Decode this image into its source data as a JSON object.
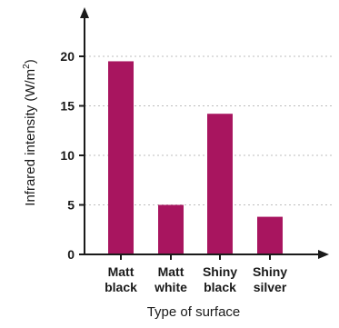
{
  "chart_data": {
    "type": "bar",
    "categories": [
      [
        "Matt",
        "black"
      ],
      [
        "Matt",
        "white"
      ],
      [
        "Shiny",
        "black"
      ],
      [
        "Shiny",
        "silver"
      ]
    ],
    "values": [
      19.5,
      5.0,
      14.2,
      3.8
    ],
    "xlabel": "Type of surface",
    "ylabel": "Infrared intensity (W/m",
    "ylabel_superscript": "2",
    "ylabel_suffix": ")",
    "ylim": [
      0,
      24
    ],
    "yticks": [
      0,
      5,
      10,
      15,
      20
    ],
    "grid": "horizontal-dotted",
    "colors": {
      "bar": "#a8155f",
      "axis": "#1a1a1a",
      "grid": "#bdbdbd"
    }
  }
}
